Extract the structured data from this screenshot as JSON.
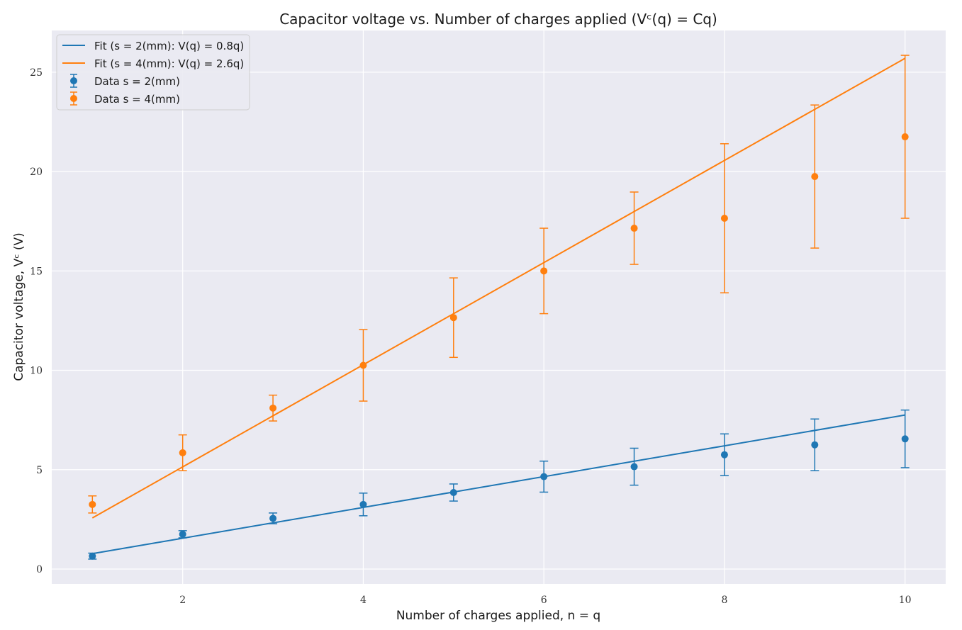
{
  "chart_data": {
    "type": "scatter",
    "title": "Capacitor voltage vs. Number of charges applied (Vᶜ(q) = Cq)",
    "xlabel": "Number of charges applied, n = q",
    "ylabel": "Capacitor voltage, Vᶜ (V)",
    "xlim": [
      0.55,
      10.45
    ],
    "ylim": [
      -0.75,
      27.1
    ],
    "xticks": [
      2,
      4,
      6,
      8,
      10
    ],
    "yticks": [
      0,
      5,
      10,
      15,
      20,
      25
    ],
    "grid": true,
    "legend_position": "top-left",
    "legend": [
      "Fit (s = 2(mm): V(q) = 0.8q)",
      "Fit (s = 4(mm): V(q) = 2.6q)",
      "Data s = 2(mm)",
      "Data s = 4(mm)"
    ],
    "series": [
      {
        "name": "Data s = 2(mm)",
        "color": "#1f77b4",
        "x": [
          1,
          2,
          3,
          4,
          5,
          6,
          7,
          8,
          9,
          10
        ],
        "y": [
          0.65,
          1.75,
          2.55,
          3.25,
          3.85,
          4.65,
          5.15,
          5.75,
          6.25,
          6.55
        ],
        "yerr": [
          0.15,
          0.18,
          0.27,
          0.57,
          0.43,
          0.78,
          0.93,
          1.05,
          1.3,
          1.45
        ],
        "fit": {
          "label": "Fit (s = 2(mm): V(q) = 0.8q)",
          "slope": 0.775,
          "intercept": 0
        }
      },
      {
        "name": "Data s = 4(mm)",
        "color": "#ff7f0e",
        "x": [
          1,
          2,
          3,
          4,
          5,
          6,
          7,
          8,
          9,
          10
        ],
        "y": [
          3.25,
          5.85,
          8.1,
          10.25,
          12.65,
          15.0,
          17.15,
          17.65,
          19.75,
          21.75
        ],
        "yerr": [
          0.43,
          0.9,
          0.65,
          1.8,
          2.0,
          2.15,
          1.82,
          3.75,
          3.6,
          4.1
        ],
        "fit": {
          "label": "Fit (s = 4(mm): V(q) = 2.6q)",
          "slope": 2.57,
          "intercept": 0
        }
      }
    ]
  }
}
